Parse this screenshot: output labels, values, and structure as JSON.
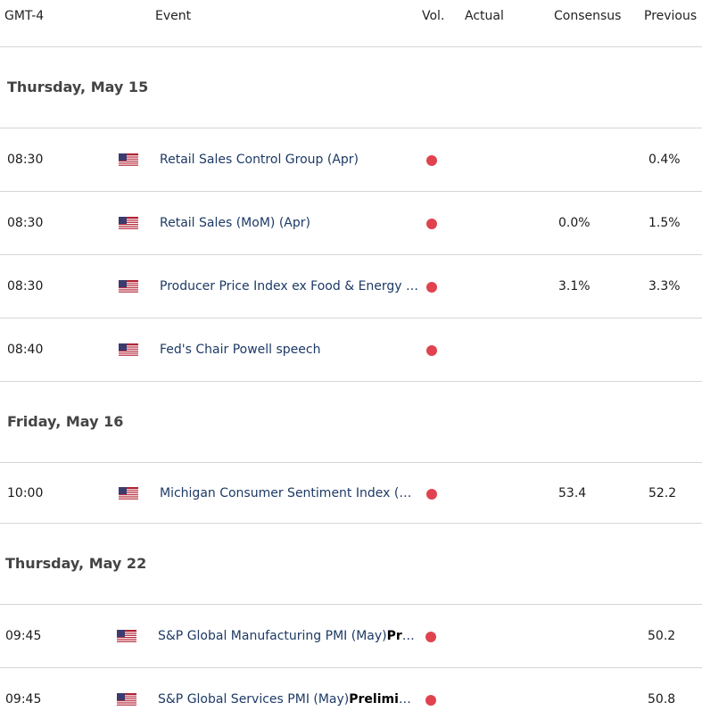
{
  "header": {
    "timezone": "GMT-4",
    "event": "Event",
    "vol": "Vol.",
    "actual": "Actual",
    "consensus": "Consensus",
    "previous": "Previous"
  },
  "groups": [
    {
      "date": "Thursday, May 15",
      "events": [
        {
          "time": "08:30",
          "country": "us-flag-icon",
          "event": "Retail Sales Control Group (Apr)",
          "bold": "",
          "actual": "",
          "consensus": "",
          "previous": "0.4%"
        },
        {
          "time": "08:30",
          "country": "us-flag-icon",
          "event": "Retail Sales (MoM) (Apr)",
          "bold": "",
          "actual": "",
          "consensus": "0.0%",
          "previous": "1.5%"
        },
        {
          "time": "08:30",
          "country": "us-flag-icon",
          "event": "Producer Price Index ex Food & Energy (Y…",
          "bold": "",
          "actual": "",
          "consensus": "3.1%",
          "previous": "3.3%"
        },
        {
          "time": "08:40",
          "country": "us-flag-icon",
          "event": "Fed's Chair Powell speech",
          "bold": "",
          "actual": "",
          "consensus": "",
          "previous": ""
        }
      ]
    },
    {
      "date": "Friday, May 16",
      "events": [
        {
          "time": "10:00",
          "country": "us-flag-icon",
          "event": "Michigan Consumer Sentiment Index (Ma…",
          "bold": "",
          "actual": "",
          "consensus": "53.4",
          "previous": "52.2"
        }
      ]
    },
    {
      "date": "Thursday, May 22",
      "events": [
        {
          "time": "09:45",
          "country": "us-flag-icon",
          "event": "S&P Global Manufacturing PMI (May)",
          "bold": "Preli…",
          "actual": "",
          "consensus": "",
          "previous": "50.2"
        },
        {
          "time": "09:45",
          "country": "us-flag-icon",
          "event": "S&P Global Services PMI (May)",
          "bold": "Preliminar",
          "actual": "",
          "consensus": "",
          "previous": "50.8"
        }
      ]
    }
  ],
  "colors": {
    "volatility_dot": "#e0434f",
    "event_text": "#1d3a66"
  }
}
